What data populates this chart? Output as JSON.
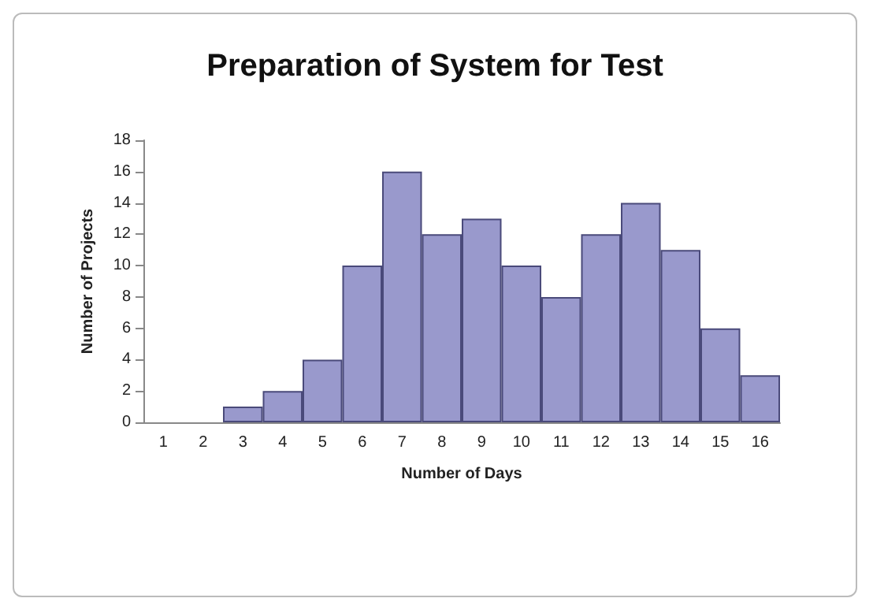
{
  "chart_data": {
    "type": "bar",
    "title": "Preparation of System for Test",
    "xlabel": "Number of Days",
    "ylabel": "Number of Projects",
    "categories": [
      "1",
      "2",
      "3",
      "4",
      "5",
      "6",
      "7",
      "8",
      "9",
      "10",
      "11",
      "12",
      "13",
      "14",
      "15",
      "16"
    ],
    "values": [
      0,
      0,
      1,
      2,
      4,
      10,
      16,
      12,
      13,
      10,
      8,
      12,
      14,
      11,
      6,
      3
    ],
    "color": "#9999cc",
    "ylim": [
      0,
      18
    ],
    "yticks": [
      0,
      2,
      4,
      6,
      8,
      10,
      12,
      14,
      16,
      18
    ],
    "grid": false
  }
}
